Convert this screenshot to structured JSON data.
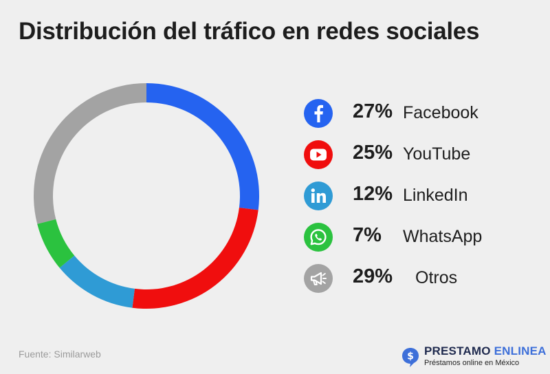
{
  "title": "Distribución del tráfico en redes sociales",
  "chart_data": {
    "type": "pie",
    "title": "Distribución del tráfico en redes sociales",
    "categories": [
      "Facebook",
      "YouTube",
      "LinkedIn",
      "WhatsApp",
      "Otros"
    ],
    "values": [
      27,
      25,
      12,
      7,
      29
    ],
    "value_labels": [
      "27%",
      "25%",
      "12%",
      "7%",
      "29%"
    ],
    "colors": [
      "#2563f0",
      "#f00e0e",
      "#2f9bd5",
      "#2bc23f",
      "#a3a3a3"
    ],
    "icons": [
      "facebook-icon",
      "youtube-icon",
      "linkedin-icon",
      "whatsapp-icon",
      "megaphone-icon"
    ],
    "style": "donut",
    "start": "top",
    "direction": "clockwise",
    "legend": "right"
  },
  "footer": {
    "source": "Fuente: Similarweb",
    "brand_part1": "PRESTAMO",
    "brand_part2": "ENLINEA",
    "tagline": "Préstamos online en México",
    "brand_icon": "dollar-bubble-icon",
    "brand_color": "#3d6fd9"
  }
}
